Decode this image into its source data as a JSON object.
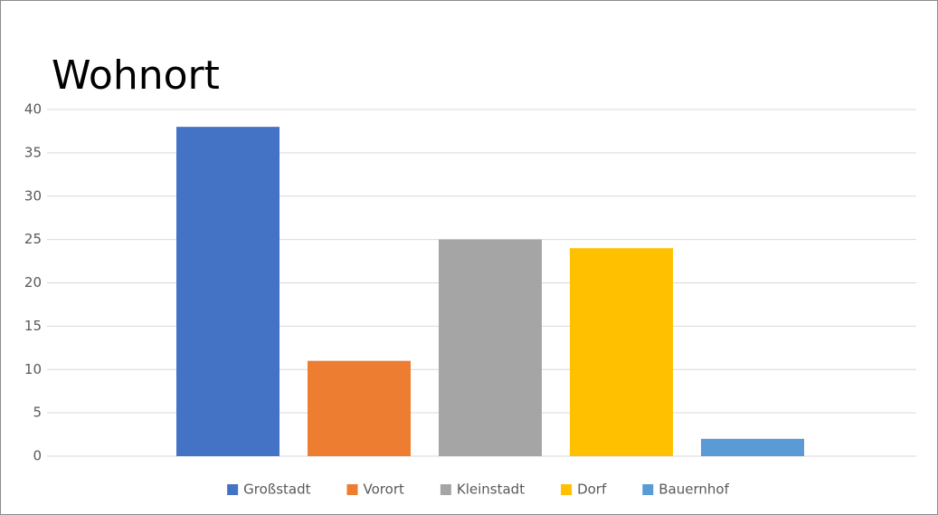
{
  "chart_data": {
    "type": "bar",
    "title": "Wohnort",
    "categories": [
      "Großstadt",
      "Vorort",
      "Kleinstadt",
      "Dorf",
      "Bauernhof"
    ],
    "values": [
      38,
      11,
      25,
      24,
      2
    ],
    "colors": [
      "#4472c4",
      "#ed7d31",
      "#a5a5a5",
      "#ffc000",
      "#5b9bd5"
    ],
    "ylim": [
      0,
      40
    ],
    "yticks": [
      0,
      5,
      10,
      15,
      20,
      25,
      30,
      35,
      40
    ],
    "grid": true,
    "legend": "bottom"
  }
}
